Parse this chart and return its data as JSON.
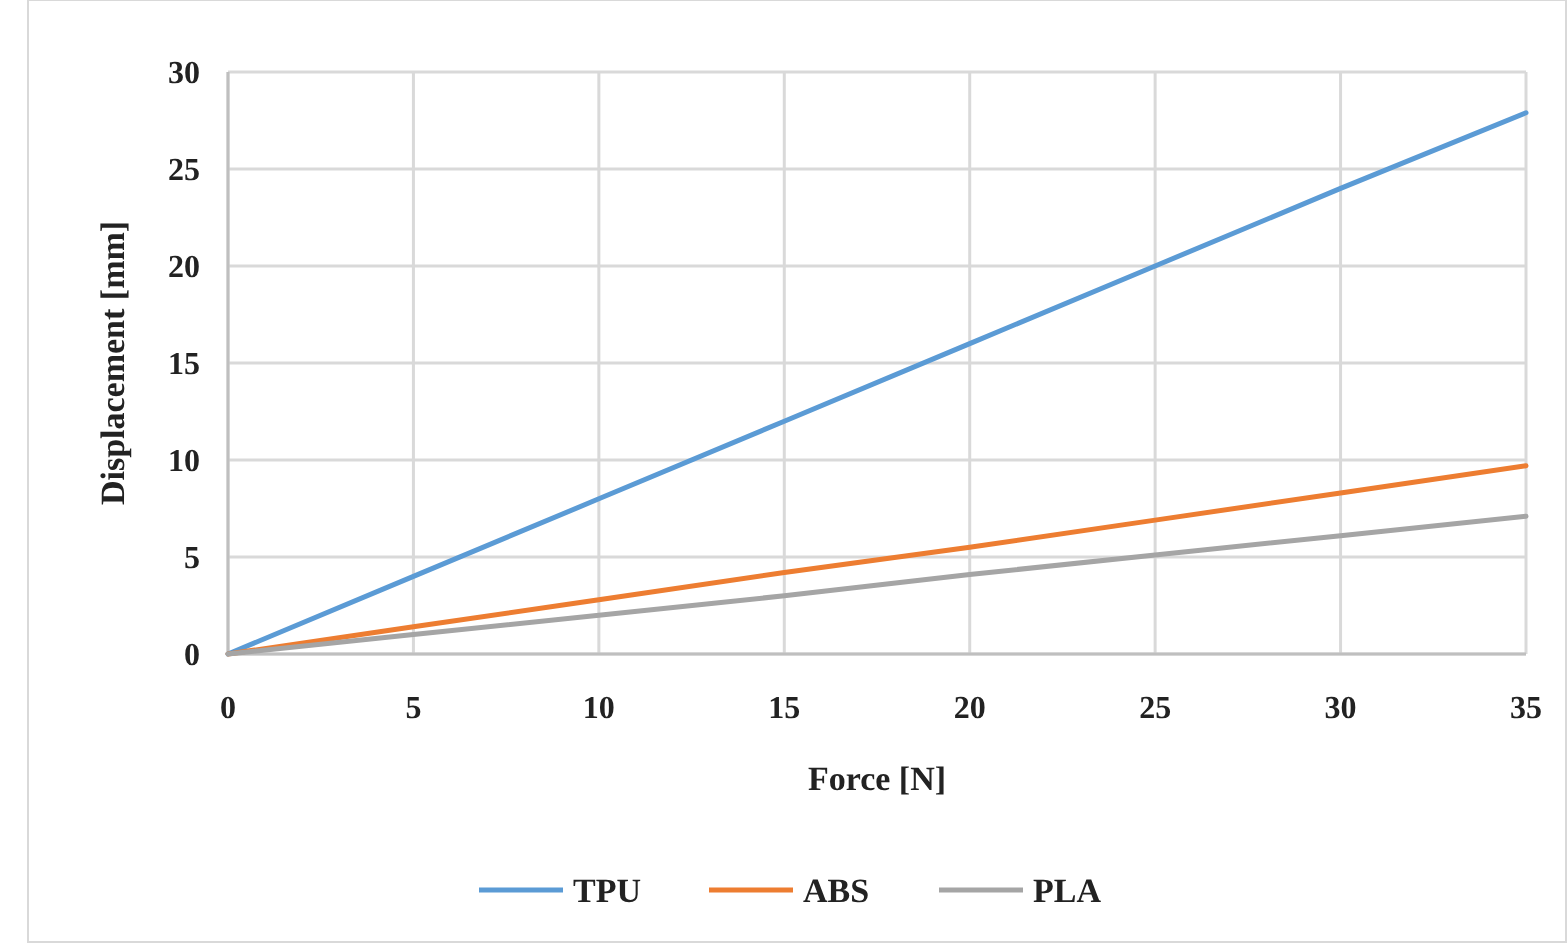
{
  "chart_data": {
    "type": "line",
    "xlabel": "Force [N]",
    "ylabel": "Displacement [mm]",
    "x": [
      0,
      5,
      10,
      15,
      20,
      25,
      30,
      35
    ],
    "series": [
      {
        "name": "TPU",
        "color": "#5b9bd5",
        "values": [
          0,
          4,
          8,
          12,
          16,
          20,
          24,
          27.9
        ]
      },
      {
        "name": "ABS",
        "color": "#ed7d31",
        "values": [
          0,
          1.4,
          2.8,
          4.2,
          5.5,
          6.9,
          8.3,
          9.7
        ]
      },
      {
        "name": "PLA",
        "color": "#a5a5a5",
        "values": [
          0,
          1,
          2,
          3,
          4.1,
          5.1,
          6.1,
          7.1
        ]
      }
    ],
    "xlim": [
      0,
      35
    ],
    "xticks": [
      0,
      5,
      10,
      15,
      20,
      25,
      30,
      35
    ],
    "ylim": [
      0,
      30
    ],
    "yticks": [
      0,
      5,
      10,
      15,
      20,
      25,
      30
    ],
    "grid": true,
    "legend": "bottom",
    "marker": "none",
    "line_style": "solid"
  }
}
